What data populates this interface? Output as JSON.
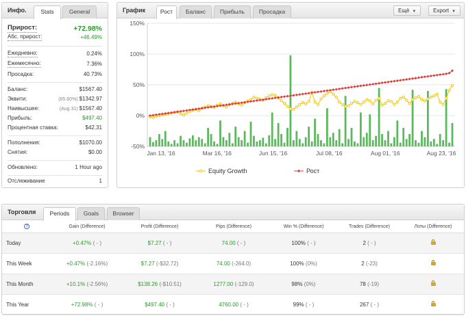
{
  "info": {
    "title": "Инфо.",
    "tabs": [
      "Stats",
      "General"
    ],
    "rows": {
      "gain_label": "Прирост:",
      "gain_value": "+72.98%",
      "abs_gain_label": "Абс. прирост:",
      "abs_gain_value": "+46.49%",
      "daily_label": "Ежедневно:",
      "daily_value": "0.24%",
      "monthly_label": "Ежемесячно:",
      "monthly_value": "7.36%",
      "drawdown_label": "Просадка:",
      "drawdown_value": "40.73%",
      "balance_label": "Баланс:",
      "balance_value": "$1567.40",
      "equity_label": "Эквити:",
      "equity_note": "(85.60%)",
      "equity_value": "$1342.97",
      "highest_label": "Наивысшее:",
      "highest_note": "(Aug 31)",
      "highest_value": "$1567.40",
      "profit_label": "Прибыль:",
      "profit_value": "$497.40",
      "interest_label": "Процентная ставка:",
      "interest_value": "$42.31",
      "deposits_label": "Пополнения:",
      "deposits_value": "$1070.00",
      "withdrawals_label": "Снятия:",
      "withdrawals_value": "$0.00",
      "updated_label": "Обновлено:",
      "updated_value": "1 Hour ago",
      "tracking_label": "Отслеживание",
      "tracking_value": "1"
    }
  },
  "chart_panel": {
    "title": "График",
    "tabs": [
      "Рост",
      "Баланс",
      "Прибыль",
      "Просадка"
    ],
    "more_label": "Ещё",
    "export_label": "Export"
  },
  "chart_data": {
    "type": "line",
    "y_ticks": [
      "150%",
      "100%",
      "50%",
      "0%",
      "-50%"
    ],
    "ylim": [
      -50,
      150
    ],
    "x_ticks": [
      "Jan 13, '16",
      "Mar 16, '16",
      "Jun 15, '16",
      "Jul 08, '16",
      "Aug 01, '16",
      "Aug 23, '16"
    ],
    "grid": true,
    "legend_position": "bottom",
    "series": [
      {
        "name": "Equity Growth",
        "color": "#f5c400",
        "values": [
          -2,
          -3,
          -1,
          0,
          1,
          2,
          3,
          4,
          5,
          6,
          3,
          1,
          4,
          7,
          9,
          10,
          8,
          12,
          14,
          16,
          15,
          13,
          17,
          19,
          16,
          14,
          18,
          20,
          22,
          19,
          17,
          21,
          24,
          26,
          30,
          28,
          27,
          25,
          29,
          32,
          34,
          33,
          29,
          24,
          20,
          15,
          11,
          10,
          14,
          18,
          21,
          19,
          23,
          38,
          22,
          18,
          27,
          32,
          36,
          39,
          35,
          30,
          22,
          18,
          15,
          16,
          20,
          23,
          21,
          18,
          22,
          26,
          24,
          19,
          25,
          28,
          17,
          20,
          24,
          23,
          18,
          22,
          28,
          30,
          25,
          20,
          26,
          29,
          31,
          26,
          24,
          27,
          30,
          32,
          35,
          22,
          18,
          28,
          41,
          49
        ]
      },
      {
        "name": "Рост",
        "color": "#e03b3b",
        "values": [
          0,
          0.7,
          1.4,
          2.1,
          2.8,
          3.5,
          4.2,
          4.9,
          5.6,
          6.3,
          7,
          7.7,
          8.4,
          9.1,
          9.8,
          10.5,
          11.2,
          11.9,
          12.6,
          13.3,
          14,
          14.7,
          15.4,
          16.1,
          16.8,
          17.5,
          18.2,
          18.9,
          19.6,
          20.3,
          21,
          21.7,
          22.4,
          23.1,
          23.8,
          24.5,
          25.2,
          25.9,
          26.6,
          27.3,
          28,
          28.7,
          29.4,
          30.1,
          30.8,
          31.5,
          32.2,
          32.9,
          33.6,
          34.3,
          35,
          35.7,
          36.4,
          37.1,
          37.8,
          38.5,
          39.2,
          39.9,
          40.6,
          41.3,
          42,
          42.7,
          43.4,
          44.1,
          44.8,
          45.5,
          46.2,
          46.9,
          47.6,
          48.3,
          49,
          49.7,
          50.4,
          51.1,
          51.8,
          52.5,
          53.2,
          53.9,
          54.6,
          55.3,
          56,
          56.7,
          57.4,
          58.1,
          58.8,
          59.5,
          60.2,
          60.9,
          61.6,
          62.3,
          63,
          63.7,
          64.4,
          65.1,
          65.8,
          66.5,
          67.2,
          67.9,
          69,
          73
        ]
      }
    ],
    "bars_color": "#5cb85c",
    "bars": [
      -35,
      -43,
      -40,
      -30,
      -38,
      -25,
      -42,
      -46,
      -40,
      -45,
      -33,
      -40,
      -44,
      -37,
      -32,
      -40,
      -35,
      -38,
      -45,
      -20,
      -30,
      -42,
      -46,
      -8,
      -35,
      -40,
      -28,
      -45,
      -18,
      -35,
      -40,
      -25,
      -44,
      -10,
      -33,
      -42,
      -40,
      -36,
      -45,
      -32,
      5,
      -38,
      -12,
      -30,
      -44,
      -20,
      98,
      -40,
      -25,
      -38,
      -45,
      -35,
      -18,
      -42,
      -5,
      -30,
      -40,
      -45,
      12,
      -35,
      -28,
      -40,
      -22,
      -45,
      32,
      -38,
      -20,
      -42,
      -45,
      5,
      -35,
      -28,
      2,
      -40,
      -33,
      45,
      -30,
      -40,
      -25,
      -45,
      -35,
      -8,
      -44,
      -20,
      -38,
      -30,
      42,
      -40,
      -44,
      -25,
      -35,
      40,
      -42,
      -38,
      -46,
      -30,
      -40,
      43,
      -44,
      -12
    ]
  },
  "trading": {
    "title": "Торговля",
    "tabs": [
      "Periods",
      "Goals",
      "Browser"
    ],
    "help_icon": "help-icon",
    "columns": [
      "Gain (Difference)",
      "Profit (Difference)",
      "Pips (Difference)",
      "Win % (Difference)",
      "Trades (Difference)",
      "Лоты (Difference)"
    ],
    "rows": [
      {
        "label": "Today",
        "gain": "+0.47%",
        "gain_diff": "( - )",
        "profit": "$7.27",
        "profit_diff": "( - )",
        "pips": "74.00",
        "pips_diff": "( - )",
        "win": "100%",
        "win_diff": "( - )",
        "trades": "2",
        "trades_diff": "( - )"
      },
      {
        "label": "This Week",
        "gain": "+0.47%",
        "gain_diff": "(-2.16%)",
        "profit": "$7.27",
        "profit_diff": "(-$32.72)",
        "pips": "74.00",
        "pips_diff": "(-264.0)",
        "win": "100%",
        "win_diff": "(0%)",
        "trades": "2",
        "trades_diff": "(-23)"
      },
      {
        "label": "This Month",
        "gain": "+10.1%",
        "gain_diff": "(-2.56%)",
        "profit": "$138.26",
        "profit_diff": "(-$10.51)",
        "pips": "1277.00",
        "pips_diff": "(-129.0)",
        "win": "98%",
        "win_diff": "(0%)",
        "trades": "78",
        "trades_diff": "(-19)"
      },
      {
        "label": "This Year",
        "gain": "+72.98%",
        "gain_diff": "( - )",
        "profit": "$497.40",
        "profit_diff": "( - )",
        "pips": "4760.00",
        "pips_diff": "( - )",
        "win": "99%",
        "win_diff": "( - )",
        "trades": "267",
        "trades_diff": "( - )"
      }
    ]
  }
}
